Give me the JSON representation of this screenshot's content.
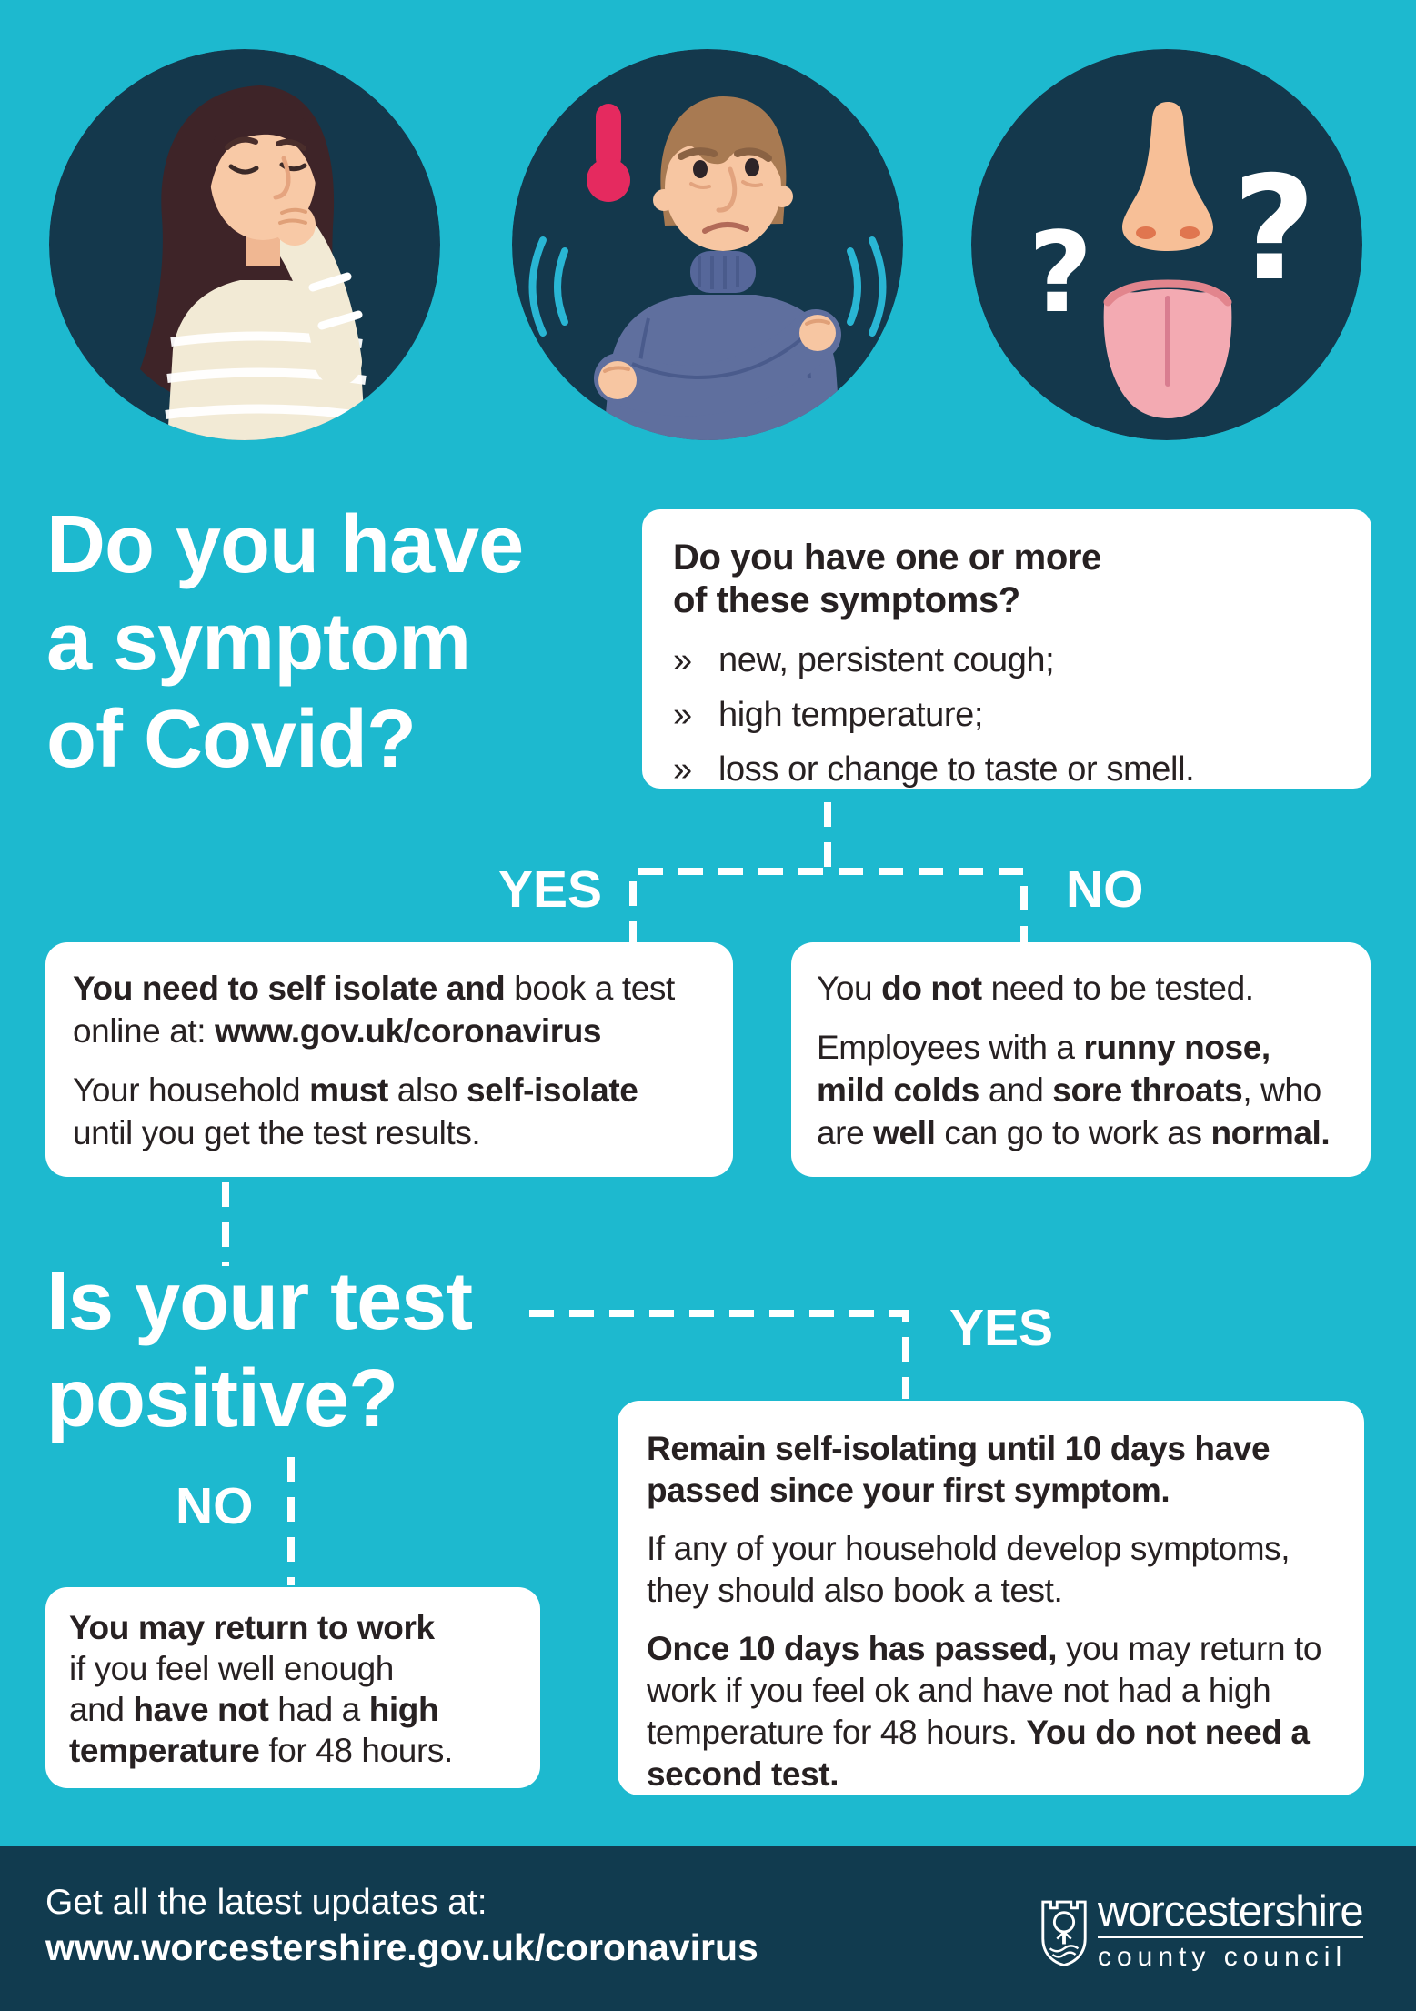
{
  "colors": {
    "background_teal": "#1db9cf",
    "circle_navy": "#14384c",
    "footer_navy": "#113b4f",
    "box_white": "#ffffff",
    "text_dark": "#272122",
    "text_white": "#ffffff",
    "thermometer_red": "#e52a5f",
    "shiver_arc_teal": "#29b6d4"
  },
  "illustrations": [
    {
      "icon": "woman-coughing-icon"
    },
    {
      "icon": "man-shivering-thermometer-icon"
    },
    {
      "icon": "nose-tongue-question-marks-icon"
    }
  ],
  "question1": {
    "heading_lines": [
      "Do you have",
      "a symptom",
      "of Covid?"
    ],
    "symptoms_box": {
      "title_lines": [
        "Do you have one or more",
        "of these symptoms?"
      ],
      "bullet_glyph": "»",
      "items": [
        "new, persistent cough;",
        "high temperature;",
        "loss or change to taste or smell."
      ]
    },
    "yes_label": "YES",
    "no_label": "NO"
  },
  "isolate_box": {
    "paragraphs": [
      [
        {
          "text": "You need to self isolate and ",
          "bold": true
        },
        {
          "text": "book a test online at: "
        },
        {
          "text": "www.gov.uk/coronavirus",
          "bold": true
        }
      ],
      [
        {
          "text": "Your household "
        },
        {
          "text": "must",
          "bold": true
        },
        {
          "text": " also "
        },
        {
          "text": "self-isolate",
          "bold": true
        },
        {
          "text": " until you get the test results."
        }
      ]
    ]
  },
  "notest_box": {
    "paragraphs": [
      [
        {
          "text": "You "
        },
        {
          "text": "do not",
          "bold": true
        },
        {
          "text": " need to be tested."
        }
      ],
      [
        {
          "text": "Employees with a "
        },
        {
          "text": "runny nose, mild colds",
          "bold": true
        },
        {
          "text": " and "
        },
        {
          "text": "sore throats",
          "bold": true
        },
        {
          "text": ", who are "
        },
        {
          "text": "well",
          "bold": true
        },
        {
          "text": " can go to work as "
        },
        {
          "text": "normal.",
          "bold": true
        }
      ]
    ]
  },
  "question2": {
    "heading_lines": [
      "Is your test",
      "positive?"
    ],
    "yes_label": "YES",
    "no_label": "NO"
  },
  "return_box": {
    "lines": [
      [
        {
          "text": "You may return to work",
          "bold": true
        }
      ],
      [
        {
          "text": "if you feel well enough"
        }
      ],
      [
        {
          "text": "and "
        },
        {
          "text": "have not",
          "bold": true
        },
        {
          "text": " had a "
        },
        {
          "text": "high",
          "bold": true
        }
      ],
      [
        {
          "text": "temperature",
          "bold": true
        },
        {
          "text": " for 48 hours."
        }
      ]
    ]
  },
  "remain_box": {
    "paragraphs": [
      [
        {
          "text": "Remain self-isolating until 10 days have passed since your first symptom.",
          "bold": true
        }
      ],
      [
        {
          "text": "If any of your household develop symptoms, they should also book a test."
        }
      ],
      [
        {
          "text": "Once 10 days has passed,",
          "bold": true
        },
        {
          "text": " you may return to work if you feel ok and have not had a high temperature for 48 hours. "
        },
        {
          "text": "You do not need a second test.",
          "bold": true
        }
      ]
    ]
  },
  "footer": {
    "updates_label": "Get all the latest updates at:",
    "updates_url": "www.worcestershire.gov.uk/coronavirus",
    "logo": {
      "crest_icon": "worcestershire-crest-icon",
      "name_text": "worcestershire",
      "subtitle_text": "county council"
    }
  }
}
